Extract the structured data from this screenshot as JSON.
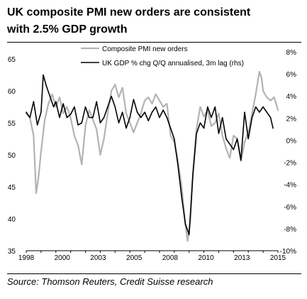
{
  "title_lines": [
    "UK composite PMI new orders are consistent",
    "with 2.5% GDP growth"
  ],
  "source": "Source: Thomson Reuters, Credit Suisse research",
  "chart_data": {
    "type": "line",
    "title": "UK composite PMI new orders are consistent with 2.5% GDP growth",
    "xlim": [
      1998,
      2015
    ],
    "x_ticks": [
      "1998",
      "2000",
      "2003",
      "2005",
      "2008",
      "2010",
      "2013",
      "2015"
    ],
    "left_axis": {
      "lim": [
        35,
        65
      ],
      "ticks": [
        "65",
        "60",
        "55",
        "50",
        "45",
        "40",
        "35"
      ]
    },
    "right_axis": {
      "lim": [
        -10,
        8
      ],
      "ticks": [
        "8%",
        "6%",
        "4%",
        "2%",
        "0%",
        "-2%",
        "-4%",
        "-6%",
        "-8%",
        "-10%"
      ]
    },
    "grid": false,
    "legend_position": "top-center",
    "series": [
      {
        "name": "Composite PMI new orders",
        "axis": "left",
        "color": "#b3b3b3",
        "points": [
          [
            1998.0,
            56.5
          ],
          [
            1998.25,
            55.8
          ],
          [
            1998.5,
            53.0
          ],
          [
            1998.67,
            44.0
          ],
          [
            1998.83,
            46.5
          ],
          [
            1999.0,
            50.5
          ],
          [
            1999.25,
            55.5
          ],
          [
            1999.5,
            58.0
          ],
          [
            1999.75,
            59.5
          ],
          [
            2000.0,
            57.5
          ],
          [
            2000.25,
            59.0
          ],
          [
            2000.5,
            56.5
          ],
          [
            2000.75,
            57.5
          ],
          [
            2001.0,
            55.8
          ],
          [
            2001.25,
            53.0
          ],
          [
            2001.5,
            51.5
          ],
          [
            2001.75,
            48.5
          ],
          [
            2002.0,
            54.5
          ],
          [
            2002.25,
            57.0
          ],
          [
            2002.5,
            55.5
          ],
          [
            2002.75,
            54.0
          ],
          [
            2003.0,
            50.0
          ],
          [
            2003.25,
            52.5
          ],
          [
            2003.5,
            56.5
          ],
          [
            2003.75,
            60.0
          ],
          [
            2004.0,
            61.0
          ],
          [
            2004.25,
            59.0
          ],
          [
            2004.5,
            60.5
          ],
          [
            2004.75,
            56.5
          ],
          [
            2005.0,
            55.0
          ],
          [
            2005.25,
            53.5
          ],
          [
            2005.5,
            55.0
          ],
          [
            2005.75,
            56.5
          ],
          [
            2006.0,
            58.5
          ],
          [
            2006.25,
            59.0
          ],
          [
            2006.5,
            58.0
          ],
          [
            2006.75,
            59.5
          ],
          [
            2007.0,
            58.5
          ],
          [
            2007.25,
            57.5
          ],
          [
            2007.5,
            58.0
          ],
          [
            2007.75,
            53.0
          ],
          [
            2008.0,
            52.0
          ],
          [
            2008.25,
            49.0
          ],
          [
            2008.5,
            45.0
          ],
          [
            2008.75,
            39.0
          ],
          [
            2008.9,
            36.5
          ],
          [
            2009.1,
            40.0
          ],
          [
            2009.25,
            47.0
          ],
          [
            2009.5,
            54.0
          ],
          [
            2009.75,
            57.5
          ],
          [
            2010.0,
            56.0
          ],
          [
            2010.25,
            57.0
          ],
          [
            2010.5,
            54.5
          ],
          [
            2010.75,
            55.0
          ],
          [
            2011.0,
            56.5
          ],
          [
            2011.25,
            53.0
          ],
          [
            2011.5,
            51.0
          ],
          [
            2011.75,
            49.5
          ],
          [
            2012.0,
            53.0
          ],
          [
            2012.25,
            52.5
          ],
          [
            2012.5,
            49.0
          ],
          [
            2012.75,
            52.0
          ],
          [
            2013.0,
            53.5
          ],
          [
            2013.25,
            56.5
          ],
          [
            2013.5,
            59.5
          ],
          [
            2013.75,
            63.0
          ],
          [
            2013.9,
            62.0
          ],
          [
            2014.0,
            60.0
          ],
          [
            2014.25,
            59.0
          ],
          [
            2014.5,
            58.5
          ],
          [
            2014.75,
            59.0
          ],
          [
            2015.0,
            57.0
          ]
        ]
      },
      {
        "name": "UK GDP % chg Q/Q annualised, 3m lag (rhs)",
        "axis": "right",
        "color": "#000000",
        "points": [
          [
            1998.0,
            3.0
          ],
          [
            1998.25,
            2.5
          ],
          [
            1998.5,
            4.0
          ],
          [
            1998.75,
            1.8
          ],
          [
            1999.0,
            3.0
          ],
          [
            1999.15,
            6.5
          ],
          [
            1999.35,
            5.5
          ],
          [
            1999.6,
            4.5
          ],
          [
            1999.85,
            3.5
          ],
          [
            2000.0,
            4.0
          ],
          [
            2000.25,
            2.5
          ],
          [
            2000.5,
            3.8
          ],
          [
            2000.75,
            2.5
          ],
          [
            2001.0,
            2.8
          ],
          [
            2001.25,
            3.5
          ],
          [
            2001.5,
            1.8
          ],
          [
            2001.75,
            2.0
          ],
          [
            2002.0,
            3.5
          ],
          [
            2002.25,
            2.5
          ],
          [
            2002.5,
            2.5
          ],
          [
            2002.75,
            4.0
          ],
          [
            2003.0,
            2.0
          ],
          [
            2003.25,
            2.5
          ],
          [
            2003.5,
            3.5
          ],
          [
            2003.75,
            4.5
          ],
          [
            2004.0,
            3.5
          ],
          [
            2004.25,
            2.0
          ],
          [
            2004.5,
            3.0
          ],
          [
            2004.75,
            1.5
          ],
          [
            2005.0,
            2.5
          ],
          [
            2005.25,
            4.2
          ],
          [
            2005.5,
            3.0
          ],
          [
            2005.75,
            2.5
          ],
          [
            2006.0,
            3.0
          ],
          [
            2006.25,
            2.2
          ],
          [
            2006.5,
            3.0
          ],
          [
            2006.75,
            3.5
          ],
          [
            2007.0,
            2.5
          ],
          [
            2007.25,
            3.2
          ],
          [
            2007.5,
            2.5
          ],
          [
            2007.75,
            1.5
          ],
          [
            2008.0,
            0.5
          ],
          [
            2008.25,
            -2.0
          ],
          [
            2008.5,
            -5.0
          ],
          [
            2008.75,
            -7.5
          ],
          [
            2009.0,
            -8.5
          ],
          [
            2009.25,
            -3.0
          ],
          [
            2009.5,
            1.0
          ],
          [
            2009.75,
            2.0
          ],
          [
            2010.0,
            1.5
          ],
          [
            2010.25,
            3.5
          ],
          [
            2010.5,
            2.5
          ],
          [
            2010.75,
            3.5
          ],
          [
            2011.0,
            1.0
          ],
          [
            2011.25,
            2.5
          ],
          [
            2011.5,
            0.5
          ],
          [
            2011.75,
            0.0
          ],
          [
            2012.0,
            -0.5
          ],
          [
            2012.25,
            0.5
          ],
          [
            2012.5,
            -1.5
          ],
          [
            2012.75,
            3.0
          ],
          [
            2013.0,
            0.5
          ],
          [
            2013.25,
            2.5
          ],
          [
            2013.5,
            3.5
          ],
          [
            2013.75,
            3.0
          ],
          [
            2014.0,
            3.5
          ],
          [
            2014.25,
            3.0
          ],
          [
            2014.5,
            2.5
          ],
          [
            2014.67,
            1.5
          ]
        ]
      }
    ]
  }
}
